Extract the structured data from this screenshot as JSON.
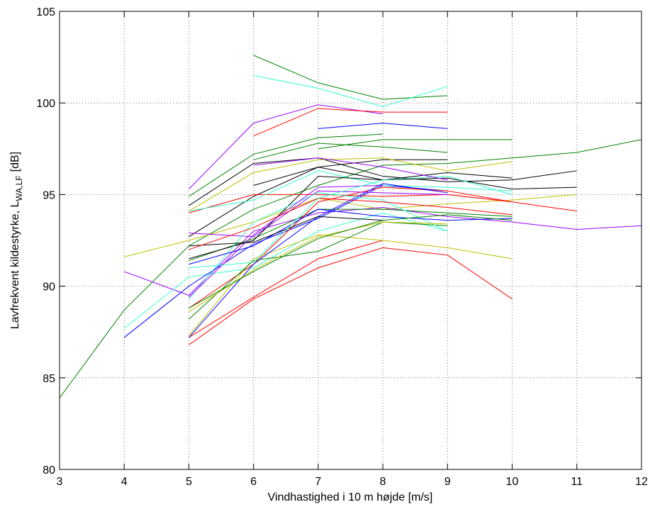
{
  "chart_data": {
    "type": "line",
    "xlabel": "Vindhastighed i 10 m højde [m/s]",
    "ylabel": "Lavfrekvent kildestyrke, L",
    "ylabel_subscript": "WA,LF",
    "ylabel_suffix": "[dB]",
    "x": [
      3,
      4,
      5,
      6,
      7,
      8,
      9,
      10,
      11,
      12
    ],
    "xlim": [
      3,
      12
    ],
    "xticks": [
      3,
      4,
      5,
      6,
      7,
      8,
      9,
      10,
      11,
      12
    ],
    "ylim": [
      80,
      105
    ],
    "yticks": [
      80,
      85,
      90,
      95,
      100,
      105
    ],
    "grid": true,
    "series": [
      {
        "color": "#008000",
        "values": [
          83.9,
          88.7,
          92.2,
          94.2,
          95.5,
          96.6,
          96.7,
          97.0,
          97.3,
          98.0
        ]
      },
      {
        "color": "#bfbf00",
        "values": [
          null,
          91.6,
          92.5,
          93.5,
          94.8,
          94.2,
          94.5,
          94.7,
          95.0,
          null
        ]
      },
      {
        "color": "#9900ff",
        "values": [
          null,
          90.8,
          89.5,
          93.0,
          94.0,
          94.3,
          93.8,
          93.5,
          93.1,
          93.3
        ]
      },
      {
        "color": "#33ffcc",
        "values": [
          null,
          87.7,
          90.5,
          91.0,
          93.0,
          94.0,
          93.0,
          null,
          null,
          null
        ]
      },
      {
        "color": "#0000ff",
        "values": [
          null,
          87.2,
          90.0,
          92.3,
          93.7,
          95.5,
          95.2,
          null,
          null,
          null
        ]
      },
      {
        "color": "#008000",
        "values": [
          null,
          null,
          null,
          102.6,
          101.1,
          100.2,
          100.4,
          null,
          null,
          null
        ]
      },
      {
        "color": "#33ffcc",
        "values": [
          null,
          null,
          null,
          101.5,
          100.8,
          99.8,
          100.9,
          null,
          null,
          null
        ]
      },
      {
        "color": "#9900ff",
        "values": [
          null,
          null,
          95.3,
          98.9,
          99.9,
          99.4,
          null,
          null,
          null,
          null
        ]
      },
      {
        "color": "#ff0000",
        "values": [
          null,
          null,
          null,
          98.2,
          99.7,
          99.5,
          99.5,
          null,
          null,
          null
        ]
      },
      {
        "color": "#0000ff",
        "values": [
          null,
          null,
          null,
          null,
          98.6,
          98.9,
          98.6,
          null,
          null,
          null
        ]
      },
      {
        "color": "#008000",
        "values": [
          null,
          null,
          94.9,
          97.2,
          98.1,
          98.3,
          null,
          null,
          null,
          null
        ]
      },
      {
        "color": "#008000",
        "values": [
          null,
          null,
          null,
          null,
          97.5,
          98.0,
          98.0,
          98.0,
          null,
          null
        ]
      },
      {
        "color": "#000000",
        "values": [
          null,
          null,
          94.4,
          96.7,
          97.0,
          96.0,
          95.7,
          95.8,
          96.3,
          null
        ]
      },
      {
        "color": "#000000",
        "values": [
          null,
          null,
          null,
          95.5,
          96.5,
          96.9,
          96.9,
          null,
          null,
          null
        ]
      },
      {
        "color": "#bfbf00",
        "values": [
          null,
          null,
          94.1,
          96.2,
          96.9,
          97.0,
          96.3,
          96.8,
          null,
          null
        ]
      },
      {
        "color": "#000000",
        "values": [
          null,
          null,
          92.7,
          94.9,
          96.5,
          95.8,
          95.9,
          95.3,
          95.4,
          null
        ]
      },
      {
        "color": "#ff0000",
        "values": [
          null,
          null,
          94.0,
          95.0,
          95.0,
          94.9,
          95.0,
          94.6,
          null,
          null
        ]
      },
      {
        "color": "#33ffcc",
        "values": [
          null,
          null,
          94.1,
          94.7,
          96.3,
          95.5,
          95.4,
          95.2,
          null,
          null
        ]
      },
      {
        "color": "#008000",
        "values": [
          null,
          null,
          91.4,
          92.6,
          94.2,
          94.2,
          94.0,
          93.8,
          null,
          null
        ]
      },
      {
        "color": "#ff0000",
        "values": [
          null,
          null,
          88.8,
          91.2,
          94.6,
          95.4,
          95.2,
          94.6,
          94.1,
          null
        ]
      },
      {
        "color": "#ff0000",
        "values": [
          null,
          null,
          86.8,
          89.3,
          91.0,
          92.1,
          91.7,
          89.3,
          null,
          null
        ]
      },
      {
        "color": "#ff0000",
        "values": [
          null,
          null,
          87.2,
          89.4,
          91.5,
          92.5,
          null,
          null,
          null,
          null
        ]
      },
      {
        "color": "#bfbf00",
        "values": [
          null,
          null,
          87.3,
          91.5,
          92.8,
          92.5,
          92.1,
          91.5,
          null,
          null
        ]
      },
      {
        "color": "#0000ff",
        "values": [
          null,
          null,
          87.2,
          91.2,
          93.8,
          95.6,
          95.1,
          null,
          null,
          null
        ]
      },
      {
        "color": "#9900ff",
        "values": [
          null,
          null,
          92.9,
          92.7,
          95.2,
          95.1,
          95.0,
          null,
          null,
          null
        ]
      },
      {
        "color": "#008000",
        "values": [
          null,
          null,
          88.2,
          91.4,
          91.9,
          93.5,
          93.3,
          null,
          null,
          null
        ]
      },
      {
        "color": "#000000",
        "values": [
          null,
          null,
          91.5,
          92.5,
          96.0,
          95.8,
          96.2,
          95.9,
          null,
          null
        ]
      },
      {
        "color": "#33ffcc",
        "values": [
          null,
          null,
          89.3,
          93.5,
          95.1,
          94.7,
          93.0,
          null,
          null,
          null
        ]
      },
      {
        "color": "#9900ff",
        "values": [
          null,
          null,
          89.4,
          92.8,
          95.4,
          95.5,
          null,
          null,
          null,
          null
        ]
      },
      {
        "color": "#0000ff",
        "values": [
          null,
          null,
          91.2,
          92.2,
          94.2,
          93.8,
          93.6,
          93.7,
          null,
          null
        ]
      },
      {
        "color": "#bfbf00",
        "values": [
          null,
          null,
          88.6,
          90.9,
          92.7,
          93.5,
          93.4,
          null,
          null,
          null
        ]
      },
      {
        "color": "#000000",
        "values": [
          null,
          null,
          92.2,
          92.4,
          93.8,
          93.6,
          null,
          null,
          null,
          null
        ]
      },
      {
        "color": "#008000",
        "values": [
          null,
          null,
          88.8,
          90.8,
          92.6,
          93.6,
          93.9,
          93.6,
          null,
          null
        ]
      },
      {
        "color": "#ff0000",
        "values": [
          null,
          null,
          92.0,
          93.2,
          94.8,
          94.6,
          94.3,
          93.9,
          null,
          null
        ]
      },
      {
        "color": "#33ffcc",
        "values": [
          null,
          null,
          91.0,
          91.3,
          94.8,
          95.8,
          96.0,
          95.0,
          null,
          null
        ]
      },
      {
        "color": "#9900ff",
        "values": [
          null,
          null,
          null,
          96.6,
          97.0,
          96.5,
          95.8,
          null,
          null,
          null
        ]
      },
      {
        "color": "#008000",
        "values": [
          null,
          null,
          null,
          96.9,
          97.8,
          97.6,
          97.3,
          null,
          null,
          null
        ]
      }
    ]
  }
}
